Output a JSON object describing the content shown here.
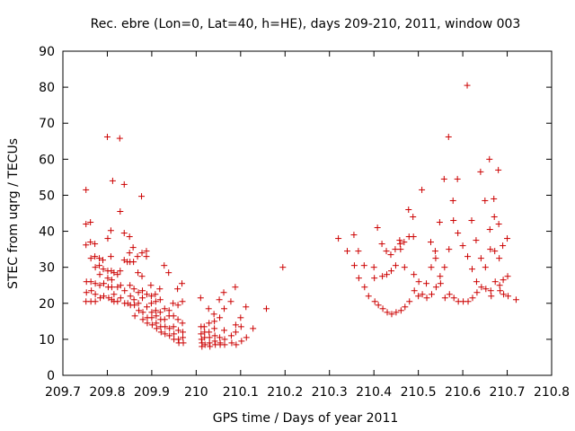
{
  "chart_data": {
    "type": "scatter",
    "title": "Rec. ebre (Lon=0, Lat=40, h=HE), days 209-210, 2011, window 003",
    "xlabel": "GPS time / Days of year 2011",
    "ylabel": "STEC from uqrg / TECUs",
    "xlim": [
      209.7,
      210.8
    ],
    "ylim": [
      0,
      90
    ],
    "xticks": [
      "209.7",
      "209.8",
      "209.9",
      "210",
      "210.1",
      "210.2",
      "210.3",
      "210.4",
      "210.5",
      "210.6",
      "210.7",
      "210.8"
    ],
    "yticks": [
      "0",
      "10",
      "20",
      "30",
      "40",
      "50",
      "60",
      "70",
      "80",
      "90"
    ],
    "grid": false,
    "marker": "+",
    "color": "#cc0000",
    "series": [
      {
        "points": [
          [
            209.752,
            51.5
          ],
          [
            209.752,
            42.0
          ],
          [
            209.752,
            36.2
          ],
          [
            209.753,
            26.0
          ],
          [
            209.753,
            23.0
          ],
          [
            209.752,
            20.5
          ],
          [
            209.762,
            42.5
          ],
          [
            209.762,
            37.0
          ],
          [
            209.763,
            32.5
          ],
          [
            209.763,
            26.0
          ],
          [
            209.764,
            23.5
          ],
          [
            209.763,
            20.5
          ],
          [
            209.772,
            36.5
          ],
          [
            209.772,
            33.0
          ],
          [
            209.773,
            30.0
          ],
          [
            209.773,
            25.5
          ],
          [
            209.773,
            22.5
          ],
          [
            209.773,
            20.5
          ],
          [
            209.782,
            32.5
          ],
          [
            209.782,
            30.5
          ],
          [
            209.783,
            28.0
          ],
          [
            209.783,
            25.0
          ],
          [
            209.784,
            21.5
          ],
          [
            209.79,
            32.0
          ],
          [
            209.791,
            29.5
          ],
          [
            209.792,
            25.5
          ],
          [
            209.792,
            22.0
          ],
          [
            209.8,
            66.2
          ],
          [
            209.801,
            38.0
          ],
          [
            209.801,
            29.0
          ],
          [
            209.801,
            27.0
          ],
          [
            209.802,
            24.5
          ],
          [
            209.803,
            21.5
          ],
          [
            209.808,
            40.2
          ],
          [
            209.808,
            33.0
          ],
          [
            209.809,
            29.0
          ],
          [
            209.81,
            26.5
          ],
          [
            209.81,
            24.5
          ],
          [
            209.81,
            21.0
          ],
          [
            209.812,
            54.0
          ],
          [
            209.815,
            28.5
          ],
          [
            209.815,
            22.5
          ],
          [
            209.815,
            20.5
          ],
          [
            209.823,
            28.0
          ],
          [
            209.823,
            24.5
          ],
          [
            209.823,
            20.5
          ],
          [
            209.828,
            65.8
          ],
          [
            209.829,
            45.5
          ],
          [
            209.829,
            29.0
          ],
          [
            209.83,
            25.0
          ],
          [
            209.83,
            21.5
          ],
          [
            209.838,
            53.0
          ],
          [
            209.838,
            39.5
          ],
          [
            209.838,
            32.0
          ],
          [
            209.839,
            23.5
          ],
          [
            209.839,
            20.0
          ],
          [
            209.845,
            31.5
          ],
          [
            209.846,
            20.0
          ],
          [
            209.85,
            38.5
          ],
          [
            209.85,
            34.0
          ],
          [
            209.851,
            31.5
          ],
          [
            209.851,
            25.0
          ],
          [
            209.852,
            22.0
          ],
          [
            209.852,
            19.5
          ],
          [
            209.858,
            35.5
          ],
          [
            209.859,
            31.5
          ],
          [
            209.86,
            24.0
          ],
          [
            209.86,
            21.0
          ],
          [
            209.861,
            19.5
          ],
          [
            209.862,
            16.5
          ],
          [
            209.868,
            33.0
          ],
          [
            209.869,
            28.5
          ],
          [
            209.87,
            23.0
          ],
          [
            209.87,
            20.0
          ],
          [
            209.871,
            18.0
          ],
          [
            209.877,
            49.7
          ],
          [
            209.878,
            34.0
          ],
          [
            209.878,
            27.5
          ],
          [
            209.879,
            23.5
          ],
          [
            209.879,
            21.5
          ],
          [
            209.88,
            17.5
          ],
          [
            209.88,
            15.5
          ],
          [
            209.888,
            34.5
          ],
          [
            209.888,
            33.0
          ],
          [
            209.889,
            22.5
          ],
          [
            209.889,
            19.0
          ],
          [
            209.89,
            16.0
          ],
          [
            209.89,
            14.5
          ],
          [
            209.898,
            25.0
          ],
          [
            209.899,
            22.0
          ],
          [
            209.899,
            20.0
          ],
          [
            209.9,
            17.5
          ],
          [
            209.9,
            16.0
          ],
          [
            209.901,
            14.0
          ],
          [
            209.908,
            22.5
          ],
          [
            209.909,
            20.5
          ],
          [
            209.909,
            18.0
          ],
          [
            209.91,
            16.5
          ],
          [
            209.91,
            14.5
          ],
          [
            209.911,
            13.0
          ],
          [
            209.918,
            24.0
          ],
          [
            209.919,
            21.0
          ],
          [
            209.919,
            17.5
          ],
          [
            209.92,
            15.5
          ],
          [
            209.92,
            13.5
          ],
          [
            209.921,
            12.0
          ],
          [
            209.928,
            30.5
          ],
          [
            209.929,
            18.5
          ],
          [
            209.929,
            15.5
          ],
          [
            209.93,
            13.5
          ],
          [
            209.93,
            11.5
          ],
          [
            209.938,
            28.5
          ],
          [
            209.939,
            18.0
          ],
          [
            209.939,
            16.5
          ],
          [
            209.94,
            13.0
          ],
          [
            209.94,
            11.0
          ],
          [
            209.948,
            20.0
          ],
          [
            209.949,
            16.5
          ],
          [
            209.949,
            13.5
          ],
          [
            209.95,
            11.5
          ],
          [
            209.95,
            10.0
          ],
          [
            209.958,
            24.0
          ],
          [
            209.959,
            19.5
          ],
          [
            209.959,
            15.5
          ],
          [
            209.96,
            12.5
          ],
          [
            209.96,
            10.0
          ],
          [
            209.961,
            9.0
          ],
          [
            209.968,
            25.5
          ],
          [
            209.969,
            20.5
          ],
          [
            209.969,
            14.5
          ],
          [
            209.97,
            12.0
          ],
          [
            209.97,
            10.5
          ],
          [
            209.971,
            9.0
          ],
          [
            210.01,
            21.5
          ],
          [
            210.011,
            13.5
          ],
          [
            210.011,
            11.5
          ],
          [
            210.012,
            10.0
          ],
          [
            210.013,
            9.0
          ],
          [
            210.013,
            8.0
          ],
          [
            210.018,
            13.5
          ],
          [
            210.019,
            12.0
          ],
          [
            210.019,
            10.5
          ],
          [
            210.02,
            8.5
          ],
          [
            210.028,
            18.5
          ],
          [
            210.029,
            14.5
          ],
          [
            210.029,
            12.0
          ],
          [
            210.03,
            10.5
          ],
          [
            210.03,
            9.0
          ],
          [
            210.031,
            8.0
          ],
          [
            210.04,
            17.0
          ],
          [
            210.041,
            15.0
          ],
          [
            210.041,
            13.0
          ],
          [
            210.042,
            11.0
          ],
          [
            210.042,
            9.5
          ],
          [
            210.043,
            8.5
          ],
          [
            210.052,
            21.0
          ],
          [
            210.053,
            16.0
          ],
          [
            210.053,
            10.5
          ],
          [
            210.054,
            9.0
          ],
          [
            210.054,
            8.5
          ],
          [
            210.062,
            23.0
          ],
          [
            210.063,
            18.5
          ],
          [
            210.063,
            12.5
          ],
          [
            210.064,
            10.0
          ],
          [
            210.064,
            8.5
          ],
          [
            210.078,
            20.5
          ],
          [
            210.079,
            11.0
          ],
          [
            210.08,
            9.0
          ],
          [
            210.088,
            24.5
          ],
          [
            210.089,
            14.0
          ],
          [
            210.089,
            12.0
          ],
          [
            210.09,
            8.5
          ],
          [
            210.1,
            16.0
          ],
          [
            210.101,
            13.5
          ],
          [
            210.102,
            9.5
          ],
          [
            210.112,
            19.0
          ],
          [
            210.113,
            10.5
          ],
          [
            210.128,
            13.0
          ],
          [
            210.158,
            18.5
          ],
          [
            210.195,
            30.0
          ],
          [
            210.32,
            38.0
          ],
          [
            210.34,
            34.5
          ],
          [
            210.355,
            39.0
          ],
          [
            210.356,
            30.5
          ],
          [
            210.365,
            34.5
          ],
          [
            210.366,
            27.0
          ],
          [
            210.378,
            30.5
          ],
          [
            210.379,
            24.5
          ],
          [
            210.388,
            22.0
          ],
          [
            210.4,
            30.0
          ],
          [
            210.401,
            27.0
          ],
          [
            210.402,
            20.5
          ],
          [
            210.408,
            41.0
          ],
          [
            210.41,
            19.5
          ],
          [
            210.418,
            36.5
          ],
          [
            210.419,
            27.5
          ],
          [
            210.42,
            18.5
          ],
          [
            210.428,
            34.5
          ],
          [
            210.429,
            28.0
          ],
          [
            210.43,
            17.5
          ],
          [
            210.438,
            33.5
          ],
          [
            210.439,
            29.0
          ],
          [
            210.44,
            17.0
          ],
          [
            210.448,
            35.0
          ],
          [
            210.449,
            30.5
          ],
          [
            210.45,
            17.5
          ],
          [
            210.458,
            37.5
          ],
          [
            210.459,
            36.5
          ],
          [
            210.46,
            35.0
          ],
          [
            210.461,
            18.0
          ],
          [
            210.468,
            37.0
          ],
          [
            210.469,
            30.0
          ],
          [
            210.47,
            19.0
          ],
          [
            210.478,
            46.0
          ],
          [
            210.479,
            38.5
          ],
          [
            210.48,
            20.5
          ],
          [
            210.488,
            44.0
          ],
          [
            210.489,
            38.5
          ],
          [
            210.49,
            28.0
          ],
          [
            210.491,
            23.5
          ],
          [
            210.5,
            22.0
          ],
          [
            210.501,
            26.0
          ],
          [
            210.508,
            51.5
          ],
          [
            210.509,
            22.5
          ],
          [
            210.518,
            25.5
          ],
          [
            210.519,
            21.5
          ],
          [
            210.528,
            37.0
          ],
          [
            210.529,
            30.0
          ],
          [
            210.53,
            22.5
          ],
          [
            210.538,
            34.5
          ],
          [
            210.539,
            32.5
          ],
          [
            210.54,
            24.5
          ],
          [
            210.548,
            42.5
          ],
          [
            210.549,
            27.5
          ],
          [
            210.55,
            25.5
          ],
          [
            210.558,
            54.5
          ],
          [
            210.559,
            30.0
          ],
          [
            210.56,
            21.5
          ],
          [
            210.568,
            66.2
          ],
          [
            210.569,
            35.0
          ],
          [
            210.57,
            22.5
          ],
          [
            210.578,
            48.5
          ],
          [
            210.579,
            43.0
          ],
          [
            210.58,
            21.5
          ],
          [
            210.588,
            54.5
          ],
          [
            210.589,
            39.5
          ],
          [
            210.59,
            20.5
          ],
          [
            210.6,
            36.0
          ],
          [
            210.601,
            20.5
          ],
          [
            210.61,
            80.5
          ],
          [
            210.611,
            33.0
          ],
          [
            210.612,
            20.5
          ],
          [
            210.62,
            43.0
          ],
          [
            210.621,
            29.5
          ],
          [
            210.622,
            21.5
          ],
          [
            210.63,
            37.5
          ],
          [
            210.631,
            26.0
          ],
          [
            210.632,
            23.0
          ],
          [
            210.64,
            56.5
          ],
          [
            210.641,
            32.5
          ],
          [
            210.642,
            24.5
          ],
          [
            210.65,
            48.5
          ],
          [
            210.651,
            30.0
          ],
          [
            210.652,
            24.0
          ],
          [
            210.66,
            60.0
          ],
          [
            210.661,
            40.5
          ],
          [
            210.662,
            35.0
          ],
          [
            210.663,
            23.5
          ],
          [
            210.664,
            22.0
          ],
          [
            210.67,
            49.0
          ],
          [
            210.671,
            44.0
          ],
          [
            210.672,
            34.5
          ],
          [
            210.673,
            26.0
          ],
          [
            210.68,
            57.0
          ],
          [
            210.681,
            42.0
          ],
          [
            210.682,
            32.5
          ],
          [
            210.683,
            25.0
          ],
          [
            210.684,
            23.5
          ],
          [
            210.69,
            36.0
          ],
          [
            210.691,
            26.5
          ],
          [
            210.692,
            22.5
          ],
          [
            210.7,
            38.0
          ],
          [
            210.701,
            27.5
          ],
          [
            210.702,
            22.0
          ],
          [
            210.72,
            21.0
          ]
        ]
      }
    ]
  }
}
